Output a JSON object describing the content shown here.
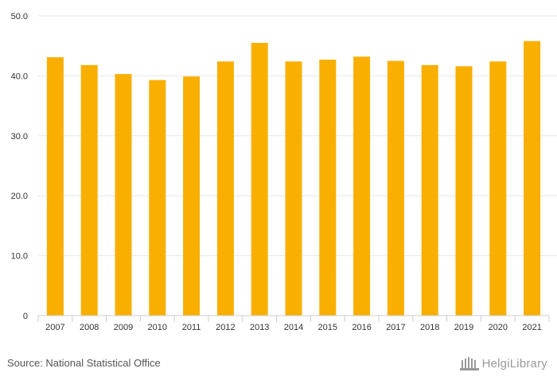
{
  "chart_data": {
    "type": "bar",
    "categories": [
      "2007",
      "2008",
      "2009",
      "2010",
      "2011",
      "2012",
      "2013",
      "2014",
      "2015",
      "2016",
      "2017",
      "2018",
      "2019",
      "2020",
      "2021"
    ],
    "values": [
      43.1,
      41.8,
      40.3,
      39.3,
      39.9,
      42.4,
      45.5,
      42.4,
      42.7,
      43.2,
      42.5,
      41.8,
      41.6,
      42.4,
      45.8
    ],
    "ylim": [
      0,
      50
    ],
    "yticks": [
      0,
      10,
      20,
      30,
      40,
      50
    ],
    "ytick_labels": [
      "0",
      "10.0",
      "20.0",
      "30.0",
      "40.0",
      "50.0"
    ],
    "title": "",
    "xlabel": "",
    "ylabel": "",
    "grid": true,
    "bar_color": "#F9AF00"
  },
  "source": {
    "text": "Source: National Statistical Office"
  },
  "logo": {
    "text": "HelgiLibrary"
  },
  "colors": {
    "grid": "#e6e6e6",
    "axis": "#cccccc",
    "tick_text": "#333333"
  }
}
